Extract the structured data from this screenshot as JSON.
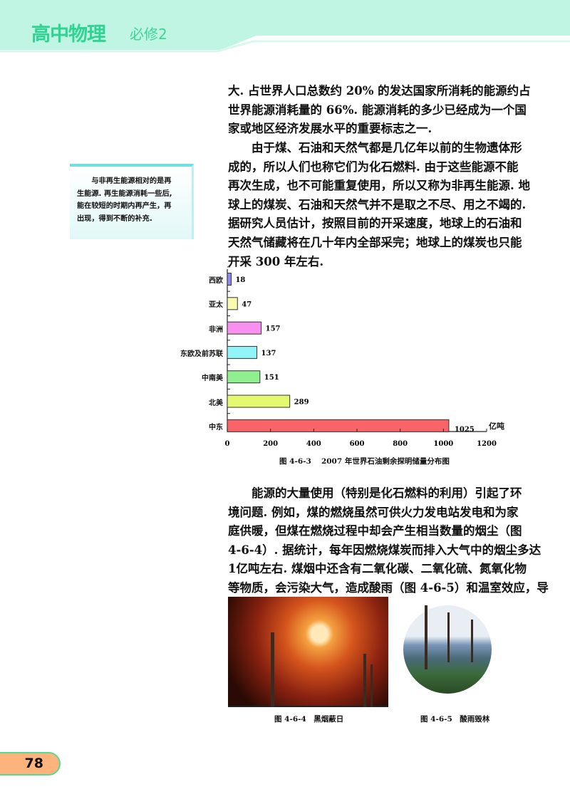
{
  "header": {
    "title": "高中物理",
    "subtitle": "必修2"
  },
  "paragraph1": [
    "大. 占世界人口总数约 20% 的发达国家所消耗的能源约占",
    "世界能源消耗量的 66%. 能源消耗的多少已经成为一个国",
    "家或地区经济发展水平的重要标志之一."
  ],
  "paragraph2": [
    "　　由于煤、石油和天然气都是几亿年以前的生物遗体形",
    "成的，所以人们也称它们为化石燃料. 由于这些能源不能",
    "再次生成，也不可能重复使用，所以又称为非再生能源. 地",
    "球上的煤炭、石油和天然气并不是取之不尽、用之不竭的.",
    "据研究人员估计，按照目前的开采速度，地球上的石油和",
    "天然气储藏将在几十年内全部采完；地球上的煤炭也只能",
    "开采 300 年左右."
  ],
  "side_note": [
    "　　与非再生能源相对的是再",
    "生能源. 再生能源消耗一些后,",
    "能在较短的时期内再产生，再",
    "出现，得到不断的补充."
  ],
  "chart_data": {
    "type": "bar",
    "orientation": "horizontal",
    "categories": [
      "西欧",
      "亚太",
      "非洲",
      "东欧及前苏联",
      "中南美",
      "北美",
      "中东"
    ],
    "values": [
      18,
      47,
      157,
      137,
      151,
      289,
      1025
    ],
    "colors": [
      "#8a8af0",
      "#fafab0",
      "#f890f0",
      "#90f4f8",
      "#90f090",
      "#e4f870",
      "#f86468"
    ],
    "unit": "亿吨",
    "xlim": [
      0,
      1200
    ],
    "xticks": [
      "0",
      "200",
      "400",
      "600",
      "800",
      "1000",
      "1200"
    ],
    "title": "图 4-6-3　 2007 年世界石油剩余探明储量分布图",
    "grid": false
  },
  "paragraph3": [
    "　　能源的大量使用（特别是化石燃料的利用）引起了环",
    "境问题. 例如，煤的燃烧虽然可供火力发电站发电和为家",
    "庭供暖，但煤在燃烧过程中却会产生相当数量的烟尘（图",
    "4-6-4）. 据统计，每年因燃烧煤炭而排入大气中的烟尘多达",
    "1亿吨左右. 煤烟中还含有二氧化碳、二氧化硫、氮氧化物",
    "等物质，会污染大气，造成酸雨（图 4-6-5）和温室效应，导"
  ],
  "figures": [
    {
      "caption": "图 4-6-4　黑烟蔽日"
    },
    {
      "caption": "图 4-6-5　酸雨毁林"
    }
  ],
  "page_number": "78"
}
